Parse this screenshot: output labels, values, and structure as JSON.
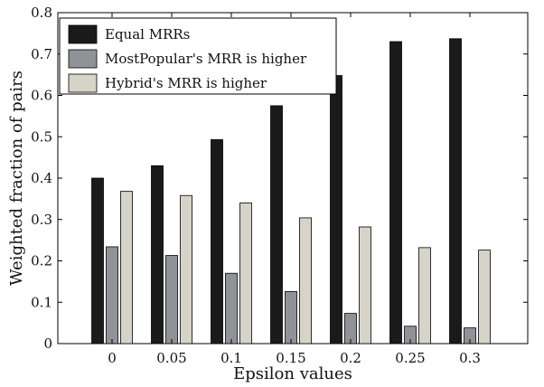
{
  "chart_data": {
    "type": "bar",
    "title": "",
    "xlabel": "Epsilon values",
    "ylabel": "Weighted fraction of pairs",
    "categories": [
      "0",
      "0.05",
      "0.1",
      "0.15",
      "0.2",
      "0.25",
      "0.3"
    ],
    "ylim": [
      0,
      0.8
    ],
    "yticks": [
      "0",
      "0.1",
      "0.2",
      "0.3",
      "0.4",
      "0.5",
      "0.6",
      "0.7",
      "0.8"
    ],
    "grid": false,
    "legend_position": "top-left",
    "series": [
      {
        "name": "Equal MRRs",
        "color": "#1a1a1a",
        "values": [
          0.4,
          0.43,
          0.493,
          0.575,
          0.648,
          0.73,
          0.737
        ]
      },
      {
        "name": "MostPopular's MRR is higher",
        "color": "#8f9296",
        "values": [
          0.234,
          0.213,
          0.17,
          0.126,
          0.073,
          0.042,
          0.038
        ]
      },
      {
        "name": "Hybrid's MRR is higher",
        "color": "#d6d3c8",
        "values": [
          0.368,
          0.358,
          0.34,
          0.304,
          0.282,
          0.232,
          0.226
        ]
      }
    ]
  }
}
